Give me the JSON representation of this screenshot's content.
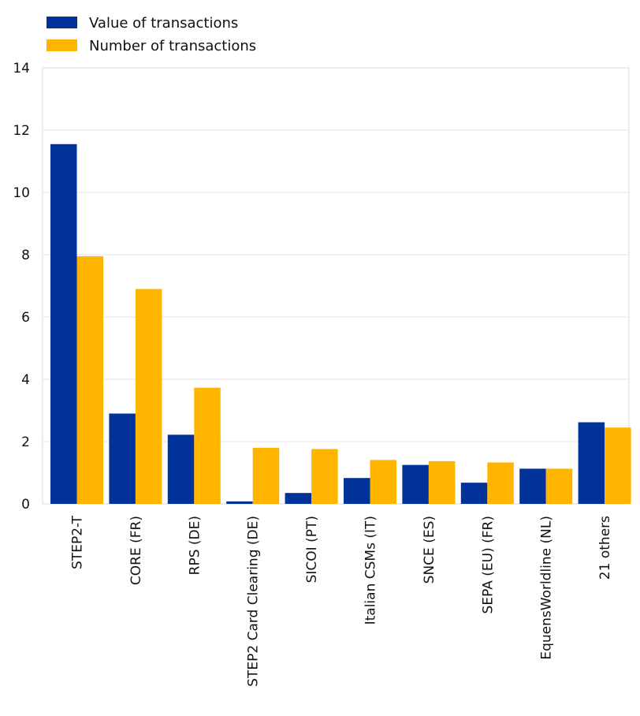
{
  "chart_data": {
    "type": "bar",
    "title": "",
    "xlabel": "",
    "ylabel": "",
    "ylim": [
      0,
      14
    ],
    "yticks": [
      0,
      2,
      4,
      6,
      8,
      10,
      12,
      14
    ],
    "grid": true,
    "legend_position": "top-left",
    "categories": [
      "STEP2-T",
      "CORE (FR)",
      "RPS (DE)",
      "STEP2 Card Clearing (DE)",
      "SICOI (PT)",
      "Italian CSMs (IT)",
      "SNCE (ES)",
      "SEPA (EU) (FR)",
      "EquensWorldline (NL)",
      "21 others"
    ],
    "series": [
      {
        "name": "Value of transactions",
        "color": "#003299",
        "values": [
          11.55,
          2.9,
          2.22,
          0.08,
          0.35,
          0.83,
          1.25,
          0.68,
          1.13,
          2.62
        ]
      },
      {
        "name": "Number of transactions",
        "color": "#FFB400",
        "values": [
          7.95,
          6.9,
          3.73,
          1.8,
          1.76,
          1.41,
          1.37,
          1.33,
          1.13,
          2.45
        ]
      }
    ]
  }
}
